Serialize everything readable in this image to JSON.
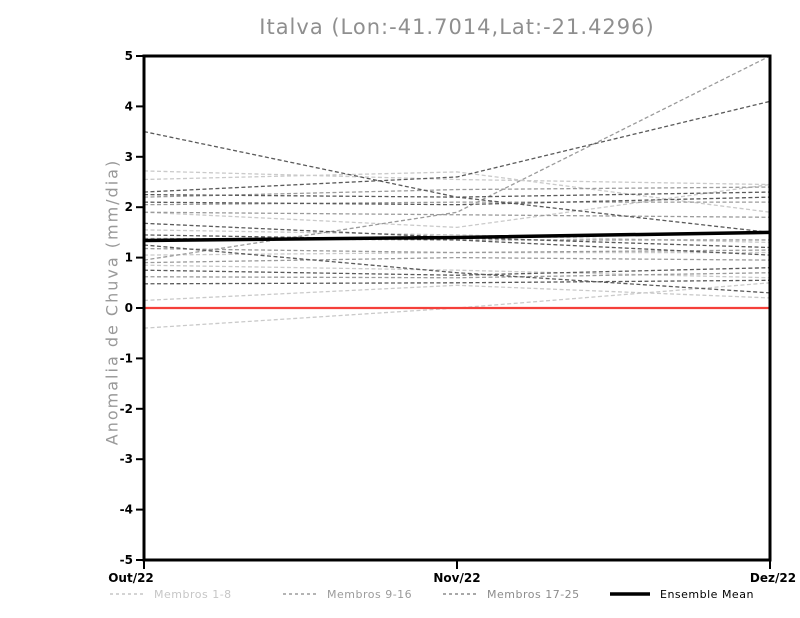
{
  "window": {
    "background": "#ffffff"
  },
  "chart_data": {
    "type": "line",
    "title": "Italva (Lon:-41.7014,Lat:-21.4296)",
    "ylabel": "Anomalia de Chuva (mm/dia)",
    "xlabel": "",
    "x_categories": [
      "Out/22",
      "Nov/22",
      "Dez/22"
    ],
    "ylim": [
      -5,
      5
    ],
    "yticks": [
      5,
      4,
      3,
      2,
      1,
      0,
      -1,
      -2,
      -3,
      -4,
      -5
    ],
    "grid": false,
    "legend_position": "bottom",
    "frame_color": "#000000",
    "tick_label_color": "#000000",
    "title_color": "#8f8f8f",
    "zero_line": {
      "value": 0,
      "color": "#f5403a"
    },
    "groups": [
      {
        "label": "Membros 1-8",
        "color": "#cacaca",
        "legend_color": "#c6c6c6",
        "style": "dashed",
        "members": [
          [
            2.72,
            2.55,
            2.45
          ],
          [
            2.55,
            2.7,
            1.9
          ],
          [
            1.9,
            1.6,
            2.45
          ],
          [
            1.55,
            1.45,
            1.3
          ],
          [
            1.05,
            1.1,
            1.1
          ],
          [
            0.85,
            0.75,
            0.6
          ],
          [
            0.15,
            0.45,
            0.2
          ],
          [
            -0.4,
            0.0,
            0.5
          ]
        ]
      },
      {
        "label": "Membros 9-16",
        "color": "#9b9b9b",
        "legend_color": "#9b9b9b",
        "style": "dashed",
        "members": [
          [
            2.2,
            2.35,
            2.4
          ],
          [
            2.05,
            2.1,
            2.1
          ],
          [
            1.9,
            1.85,
            1.8
          ],
          [
            1.38,
            1.35,
            1.35
          ],
          [
            1.18,
            1.1,
            1.15
          ],
          [
            0.9,
            1.0,
            0.95
          ],
          [
            0.62,
            0.6,
            0.7
          ],
          [
            0.95,
            1.9,
            5.0
          ]
        ]
      },
      {
        "label": "Membros 17-25",
        "color": "#5a5a5a",
        "legend_color": "#8c8c8c",
        "style": "dashed",
        "members": [
          [
            3.5,
            2.2,
            1.5
          ],
          [
            2.3,
            2.6,
            4.1
          ],
          [
            2.25,
            2.2,
            2.3
          ],
          [
            2.1,
            2.05,
            2.2
          ],
          [
            1.68,
            1.4,
            1.2
          ],
          [
            1.45,
            1.35,
            1.05
          ],
          [
            1.25,
            0.7,
            0.3
          ],
          [
            0.75,
            0.65,
            0.8
          ],
          [
            0.48,
            0.5,
            0.55
          ]
        ]
      },
      {
        "label": "Ensemble Mean",
        "color": "#000000",
        "legend_color": "#000000",
        "style": "solid",
        "values": [
          1.34,
          1.4,
          1.5
        ]
      }
    ]
  }
}
